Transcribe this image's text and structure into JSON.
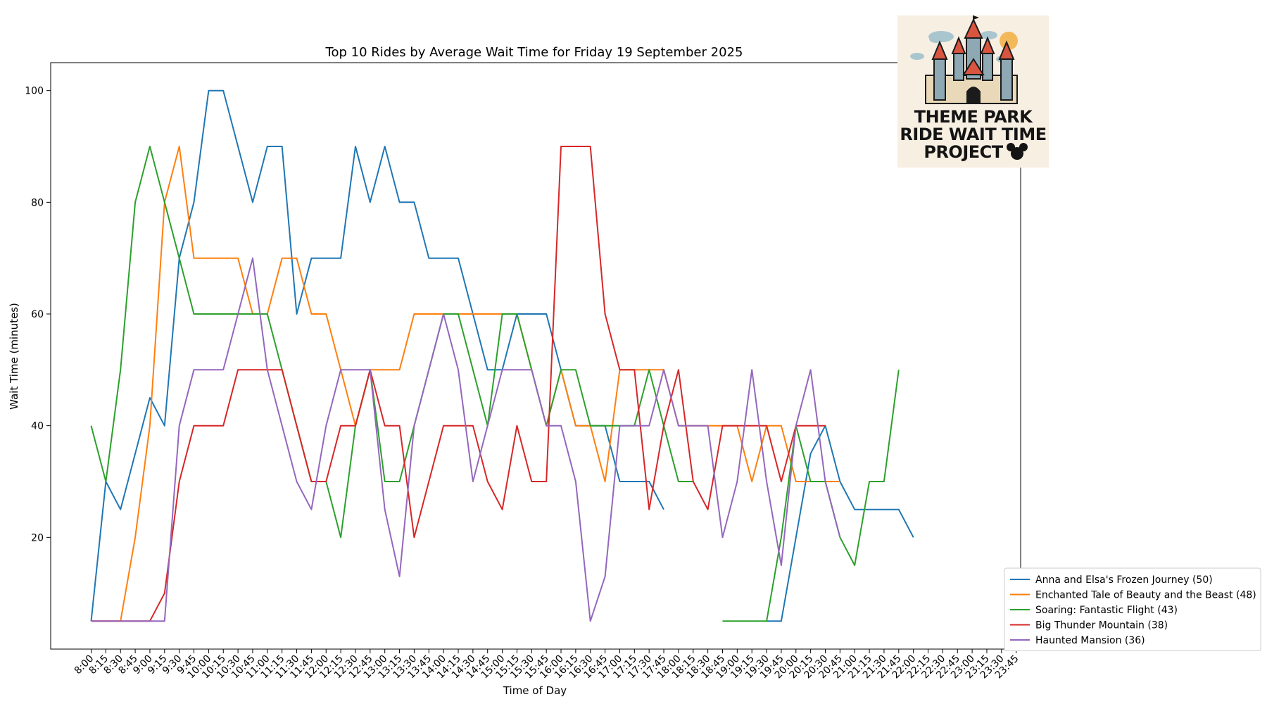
{
  "chart_data": {
    "type": "line",
    "title": "Top 10 Rides by Average Wait Time for Friday 19 September 2025",
    "xlabel": "Time of Day",
    "ylabel": "Wait Time (minutes)",
    "ylim": [
      0,
      105
    ],
    "yticks": [
      20,
      40,
      60,
      80,
      100
    ],
    "grid": false,
    "legend_position": "lower-right-outside",
    "x": [
      "8:00",
      "8:15",
      "8:30",
      "8:45",
      "9:00",
      "9:15",
      "9:30",
      "9:45",
      "10:00",
      "10:15",
      "10:30",
      "10:45",
      "11:00",
      "11:15",
      "11:30",
      "11:45",
      "12:00",
      "12:15",
      "12:30",
      "12:45",
      "13:00",
      "13:15",
      "13:30",
      "13:45",
      "14:00",
      "14:15",
      "14:30",
      "14:45",
      "15:00",
      "15:15",
      "15:30",
      "15:45",
      "16:00",
      "16:15",
      "16:30",
      "16:45",
      "17:00",
      "17:15",
      "17:30",
      "17:45",
      "18:00",
      "18:15",
      "18:30",
      "18:45",
      "19:00",
      "19:15",
      "19:30",
      "19:45",
      "20:00",
      "20:15",
      "20:30",
      "20:45",
      "21:00",
      "21:15",
      "21:30",
      "21:45",
      "22:00",
      "22:15",
      "22:30",
      "22:45",
      "23:00",
      "23:15",
      "23:30",
      "23:45"
    ],
    "series": [
      {
        "name": "Anna and Elsa's Frozen Journey (50)",
        "color": "#1f77b4",
        "values": [
          5,
          30,
          25,
          35,
          45,
          40,
          70,
          80,
          100,
          100,
          90,
          80,
          90,
          90,
          60,
          70,
          70,
          70,
          90,
          80,
          90,
          80,
          80,
          70,
          70,
          70,
          60,
          50,
          50,
          60,
          60,
          60,
          50,
          40,
          40,
          40,
          30,
          30,
          30,
          25,
          null,
          null,
          null,
          null,
          null,
          null,
          5,
          5,
          20,
          35,
          40,
          30,
          25,
          25,
          25,
          25,
          20,
          null,
          null,
          null,
          null,
          null,
          null,
          null
        ]
      },
      {
        "name": "Enchanted Tale of Beauty and the Beast (48)",
        "color": "#ff7f0e",
        "values": [
          5,
          5,
          5,
          20,
          40,
          80,
          90,
          70,
          70,
          70,
          70,
          60,
          60,
          70,
          70,
          60,
          60,
          50,
          40,
          50,
          50,
          50,
          60,
          60,
          60,
          60,
          60,
          60,
          60,
          60,
          50,
          40,
          50,
          40,
          40,
          30,
          50,
          50,
          50,
          50,
          40,
          40,
          40,
          40,
          40,
          30,
          40,
          40,
          30,
          30,
          30,
          30,
          null,
          null,
          null,
          null,
          null,
          null,
          null,
          null,
          null,
          null,
          null,
          null
        ]
      },
      {
        "name": "Soaring: Fantastic Flight (43)",
        "color": "#2ca02c",
        "values": [
          40,
          30,
          50,
          80,
          90,
          80,
          70,
          60,
          60,
          60,
          60,
          60,
          60,
          50,
          40,
          30,
          30,
          20,
          40,
          50,
          30,
          30,
          40,
          50,
          60,
          60,
          50,
          40,
          60,
          60,
          50,
          40,
          50,
          50,
          40,
          40,
          40,
          40,
          50,
          40,
          30,
          30,
          null,
          5,
          5,
          5,
          5,
          20,
          40,
          30,
          30,
          20,
          15,
          30,
          30,
          50,
          null,
          null,
          null,
          null,
          null,
          null,
          null,
          null
        ]
      },
      {
        "name": "Big Thunder Mountain (38)",
        "color": "#d62728",
        "values": [
          5,
          5,
          5,
          5,
          5,
          10,
          30,
          40,
          40,
          40,
          50,
          50,
          50,
          50,
          40,
          30,
          30,
          40,
          40,
          50,
          40,
          40,
          20,
          30,
          40,
          40,
          40,
          30,
          25,
          40,
          30,
          30,
          90,
          90,
          90,
          60,
          50,
          50,
          25,
          40,
          50,
          30,
          25,
          40,
          40,
          40,
          40,
          30,
          40,
          40,
          40,
          null,
          null,
          null,
          null,
          null,
          null,
          null,
          null,
          null,
          null,
          null,
          null,
          null
        ]
      },
      {
        "name": "Haunted Mansion (36)",
        "color": "#9467bd",
        "values": [
          5,
          5,
          5,
          5,
          5,
          5,
          40,
          50,
          50,
          50,
          60,
          70,
          50,
          40,
          30,
          25,
          40,
          50,
          50,
          50,
          25,
          13,
          40,
          50,
          60,
          50,
          30,
          40,
          50,
          50,
          50,
          40,
          40,
          30,
          5,
          13,
          40,
          40,
          40,
          50,
          40,
          40,
          40,
          20,
          30,
          50,
          30,
          15,
          40,
          50,
          30,
          20,
          null,
          null,
          null,
          null,
          null,
          null,
          null,
          null,
          null,
          null,
          null,
          null
        ]
      }
    ]
  },
  "logo": {
    "line1": "THEME PARK",
    "line2": "RIDE WAIT TIME",
    "line3": "PROJECT"
  }
}
